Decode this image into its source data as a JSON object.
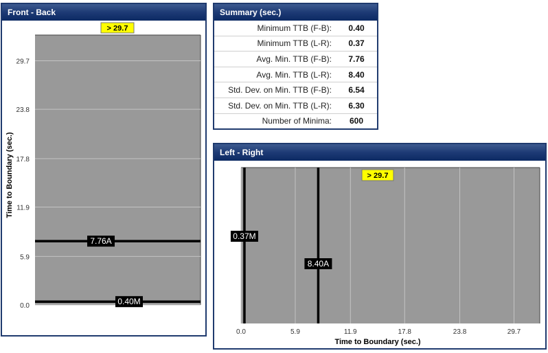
{
  "front_back": {
    "title": "Front - Back",
    "y_axis_label": "Time to Boundary (sec.)",
    "overflow_label": "> 29.7",
    "ticks": [
      "29.7",
      "23.8",
      "17.8",
      "11.9",
      "5.9",
      "0.0"
    ],
    "markers": [
      {
        "label": "7.76A",
        "value": 7.76
      },
      {
        "label": "0.40M",
        "value": 0.4
      }
    ]
  },
  "summary": {
    "title": "Summary (sec.)",
    "rows": [
      {
        "label": "Minimum TTB (F-B):",
        "value": "0.40"
      },
      {
        "label": "Minimum TTB (L-R):",
        "value": "0.37"
      },
      {
        "label": "Avg. Min. TTB (F-B):",
        "value": "7.76"
      },
      {
        "label": "Avg. Min. TTB (L-R):",
        "value": "8.40"
      },
      {
        "label": "Std. Dev. on Min. TTB (F-B):",
        "value": "6.54"
      },
      {
        "label": "Std. Dev. on Min. TTB (L-R):",
        "value": "6.30"
      },
      {
        "label": "Number of Minima:",
        "value": "600"
      }
    ]
  },
  "left_right": {
    "title": "Left - Right",
    "x_axis_label": "Time to Boundary (sec.)",
    "overflow_label": "> 29.7",
    "ticks": [
      "0.0",
      "5.9",
      "11.9",
      "17.8",
      "23.8",
      "29.7"
    ],
    "markers": [
      {
        "label": "0.37M",
        "value": 0.37
      },
      {
        "label": "8.40A",
        "value": 8.4
      }
    ]
  },
  "colors": {
    "panel_border": "#1f3a6e",
    "plot_bg": "#999999",
    "marker": "#000000",
    "overflow_badge": "#ffff00"
  }
}
